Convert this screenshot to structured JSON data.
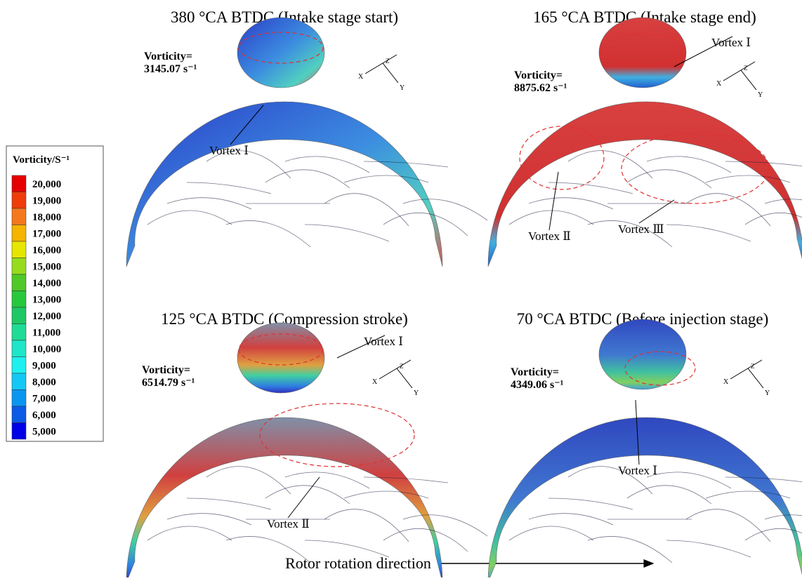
{
  "legend": {
    "title": "Vorticity/S⁻¹",
    "levels": [
      {
        "label": "20,000",
        "color": "#e60000"
      },
      {
        "label": "19,000",
        "color": "#f03c0a"
      },
      {
        "label": "18,000",
        "color": "#f5781e"
      },
      {
        "label": "17,000",
        "color": "#f5b400"
      },
      {
        "label": "16,000",
        "color": "#e6e600"
      },
      {
        "label": "15,000",
        "color": "#96dc1e"
      },
      {
        "label": "14,000",
        "color": "#50c828"
      },
      {
        "label": "13,000",
        "color": "#28c83c"
      },
      {
        "label": "12,000",
        "color": "#1ec864"
      },
      {
        "label": "11,000",
        "color": "#1edc96"
      },
      {
        "label": "10,000",
        "color": "#1ee6c8"
      },
      {
        "label": "9,000",
        "color": "#1ef0f0"
      },
      {
        "label": "8,000",
        "color": "#14c8f5"
      },
      {
        "label": "7,000",
        "color": "#0a96f0"
      },
      {
        "label": "6,000",
        "color": "#0a5ae6"
      },
      {
        "label": "5,000",
        "color": "#0000e6"
      }
    ]
  },
  "panels": [
    {
      "title": "380 °CA BTDC (Intake stage start)",
      "vorticity_label": "Vorticity=",
      "vorticity_value": "3145.07 s⁻¹",
      "vortices": [
        "Vortex Ⅰ"
      ]
    },
    {
      "title": "165 °CA BTDC (Intake stage end)",
      "vorticity_label": "Vorticity=",
      "vorticity_value": "8875.62 s⁻¹",
      "vortices": [
        "Vortex Ⅰ",
        "Vortex Ⅱ",
        "Vortex Ⅲ"
      ]
    },
    {
      "title": "125 °CA BTDC (Compression stroke)",
      "vorticity_label": "Vorticity=",
      "vorticity_value": "6514.79 s⁻¹",
      "vortices": [
        "Vortex Ⅰ",
        "Vortex Ⅱ"
      ]
    },
    {
      "title": "70 °CA BTDC (Before injection stage)",
      "vorticity_label": "Vorticity=",
      "vorticity_value": "4349.06 s⁻¹",
      "vortices": [
        "Vortex Ⅰ"
      ]
    }
  ],
  "axes": {
    "x": "X",
    "y": "Y",
    "z": "Z"
  },
  "footer": "Rotor rotation direction"
}
